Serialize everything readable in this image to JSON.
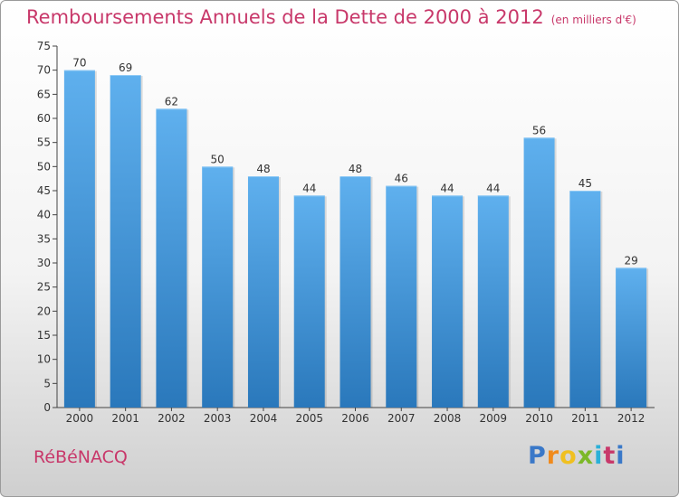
{
  "header": {
    "title": "Remboursements Annuels de la Dette de 2000 à 2012",
    "unit": "(en milliers d'€)"
  },
  "footer": {
    "commune": "RéBéNACQ",
    "brand": {
      "letters": [
        "P",
        "r",
        "o",
        "x",
        "i",
        "t",
        "i"
      ],
      "colors": [
        "#3a78c8",
        "#f08a1c",
        "#f0c020",
        "#7cb828",
        "#2ab0d8",
        "#c8386a",
        "#3a78c8"
      ]
    }
  },
  "colors": {
    "bar_light": "#5fb0ee",
    "bar_dark": "#2a78bb",
    "axis": "#444444",
    "grid": "#d8d8d8",
    "title": "#c8386a"
  },
  "chart_data": {
    "type": "bar",
    "categories": [
      "2000",
      "2001",
      "2002",
      "2003",
      "2004",
      "2005",
      "2006",
      "2007",
      "2008",
      "2009",
      "2010",
      "2011",
      "2012"
    ],
    "values": [
      70,
      69,
      62,
      50,
      48,
      44,
      48,
      46,
      44,
      44,
      56,
      45,
      29
    ],
    "ylim": [
      0,
      75
    ],
    "yticks": [
      0,
      5,
      10,
      15,
      20,
      25,
      30,
      35,
      40,
      45,
      50,
      55,
      60,
      65,
      70,
      75
    ],
    "grid": false,
    "data_labels": true
  }
}
